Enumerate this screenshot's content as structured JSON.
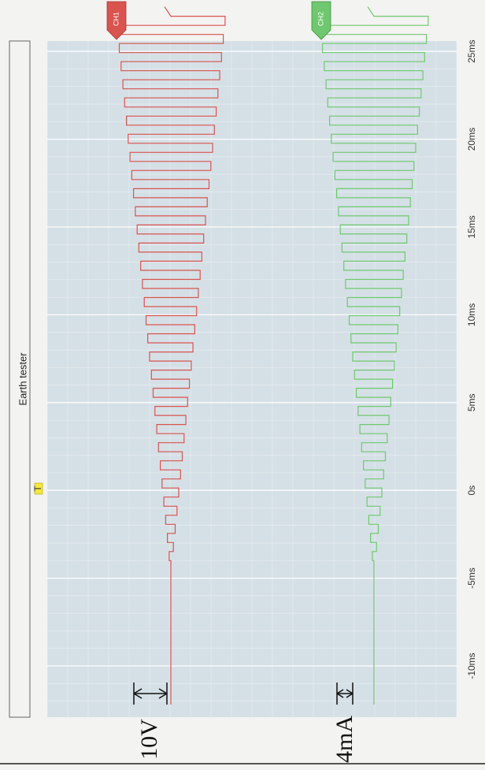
{
  "chart_data": {
    "type": "line",
    "title": "Earth tester",
    "trigger_marker": "T",
    "x": {
      "label": "",
      "range_ms": [
        -12,
        28
      ],
      "ticks": [
        {
          "value": -10,
          "label": "-10ms"
        },
        {
          "value": -5,
          "label": "-5ms"
        },
        {
          "value": 0,
          "label": "0s"
        },
        {
          "value": 5,
          "label": "5ms"
        },
        {
          "value": 10,
          "label": "10ms"
        },
        {
          "value": 15,
          "label": "15ms"
        },
        {
          "value": 20,
          "label": "20ms"
        },
        {
          "value": 25,
          "label": "25ms"
        }
      ]
    },
    "grid": true,
    "series": [
      {
        "name": "CH1",
        "color": "#d9534f",
        "waveform": "square",
        "flat_until_ms": -4,
        "envelope_ms": [
          -4,
          27
        ],
        "envelope_amplitude": [
          0.03,
          1.0
        ],
        "cycle_count": 30,
        "scale_label": "10V"
      },
      {
        "name": "CH2",
        "color": "#6fc86f",
        "waveform": "square",
        "flat_until_ms": -4,
        "envelope_ms": [
          -4,
          27
        ],
        "envelope_amplitude": [
          0.03,
          1.0
        ],
        "cycle_count": 30,
        "scale_label": "4mA"
      }
    ]
  }
}
